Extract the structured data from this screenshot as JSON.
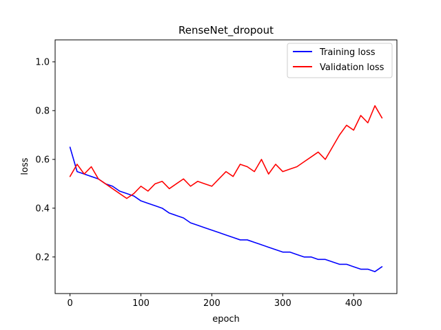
{
  "chart_data": {
    "type": "line",
    "title": "RenseNet_dropout",
    "xlabel": "epoch",
    "ylabel": "loss",
    "xlim": [
      -21,
      461
    ],
    "ylim": [
      0.05,
      1.09
    ],
    "xticks": [
      0,
      100,
      200,
      300,
      400
    ],
    "yticks": [
      0.2,
      0.4,
      0.6,
      0.8,
      1.0
    ],
    "xtick_labels": [
      "0",
      "100",
      "200",
      "300",
      "400"
    ],
    "ytick_labels": [
      "0.2",
      "0.4",
      "0.6",
      "0.8",
      "1.0"
    ],
    "grid": false,
    "legend_position": "top-right",
    "series": [
      {
        "name": "Training loss",
        "color": "#0000ff",
        "x": [
          0,
          10,
          20,
          30,
          40,
          50,
          60,
          70,
          80,
          90,
          100,
          110,
          120,
          130,
          140,
          150,
          160,
          170,
          180,
          190,
          200,
          210,
          220,
          230,
          240,
          250,
          260,
          270,
          280,
          290,
          300,
          310,
          320,
          330,
          340,
          350,
          360,
          370,
          380,
          390,
          400,
          410,
          420,
          430,
          440
        ],
        "y": [
          0.65,
          0.55,
          0.54,
          0.53,
          0.52,
          0.5,
          0.49,
          0.47,
          0.46,
          0.45,
          0.43,
          0.42,
          0.41,
          0.4,
          0.38,
          0.37,
          0.36,
          0.34,
          0.33,
          0.32,
          0.31,
          0.3,
          0.29,
          0.28,
          0.27,
          0.27,
          0.26,
          0.25,
          0.24,
          0.23,
          0.22,
          0.22,
          0.21,
          0.2,
          0.2,
          0.19,
          0.19,
          0.18,
          0.17,
          0.17,
          0.16,
          0.15,
          0.15,
          0.14,
          0.16
        ]
      },
      {
        "name": "Validation loss",
        "color": "#ff0000",
        "x": [
          0,
          10,
          20,
          30,
          40,
          50,
          60,
          70,
          80,
          90,
          100,
          110,
          120,
          130,
          140,
          150,
          160,
          170,
          180,
          190,
          200,
          210,
          220,
          230,
          240,
          250,
          260,
          270,
          280,
          290,
          300,
          310,
          320,
          330,
          340,
          350,
          360,
          370,
          380,
          390,
          400,
          410,
          420,
          430,
          440
        ],
        "y": [
          0.53,
          0.58,
          0.54,
          0.57,
          0.52,
          0.5,
          0.48,
          0.46,
          0.44,
          0.46,
          0.49,
          0.47,
          0.5,
          0.51,
          0.48,
          0.5,
          0.52,
          0.49,
          0.51,
          0.5,
          0.49,
          0.52,
          0.55,
          0.53,
          0.58,
          0.57,
          0.55,
          0.6,
          0.54,
          0.58,
          0.55,
          0.56,
          0.57,
          0.59,
          0.61,
          0.63,
          0.6,
          0.65,
          0.7,
          0.74,
          0.72,
          0.78,
          0.75,
          0.82,
          0.77
        ]
      }
    ]
  }
}
